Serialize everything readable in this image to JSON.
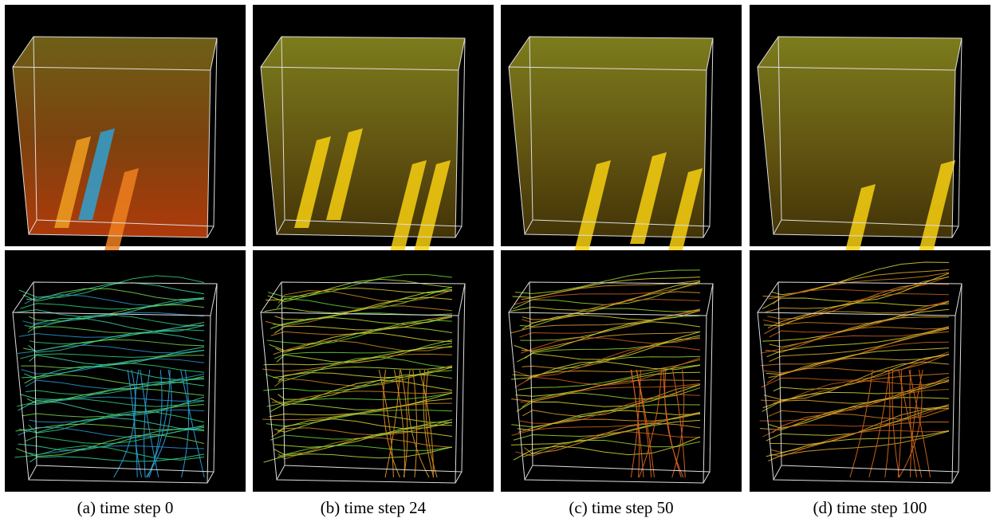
{
  "figure": {
    "panels": [
      {
        "caption": "(a) time step 0"
      },
      {
        "caption": "(b) time step 24"
      },
      {
        "caption": "(c) time step 50"
      },
      {
        "caption": "(d) time step 100"
      }
    ]
  }
}
